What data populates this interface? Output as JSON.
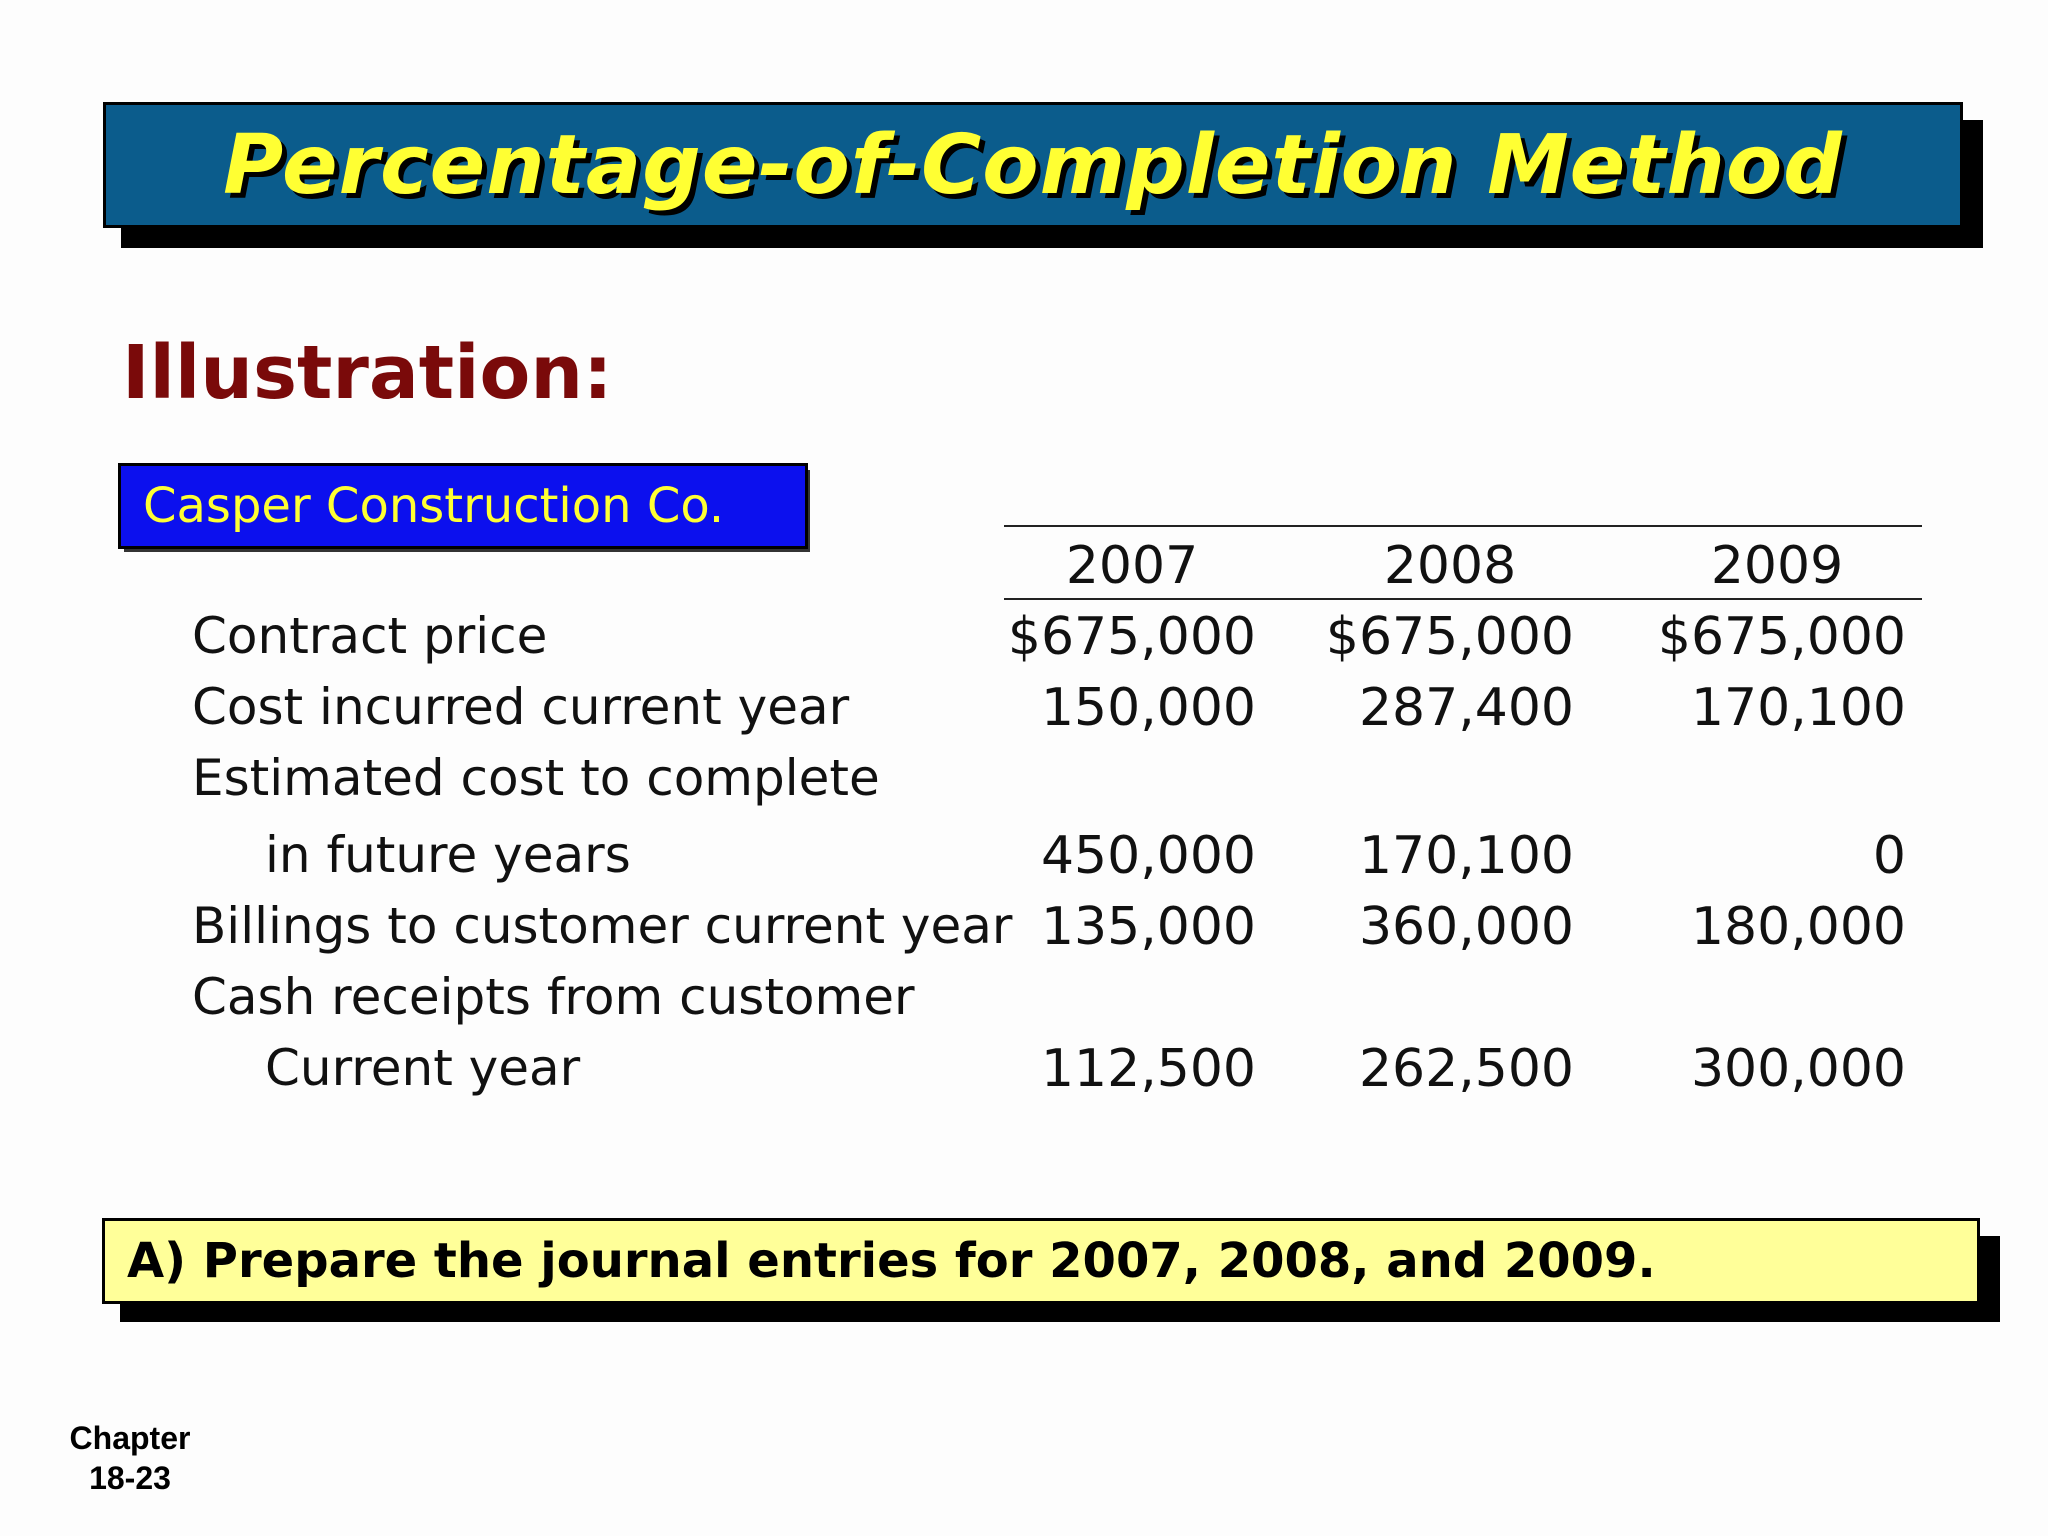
{
  "title": "Percentage-of-Completion Method",
  "heading": "Illustration:",
  "company": "Casper Construction Co.",
  "table": {
    "years": [
      "2007",
      "2008",
      "2009"
    ],
    "rows": [
      {
        "label": "Contract price",
        "values": [
          "$675,000",
          "$675,000",
          "$675,000"
        ]
      },
      {
        "label": "Cost incurred current year",
        "values": [
          "150,000",
          "287,400",
          "170,100"
        ]
      },
      {
        "label": "Estimated cost to complete",
        "values": [
          "",
          "",
          ""
        ]
      },
      {
        "label": "in future years",
        "values": [
          "450,000",
          "170,100",
          "0"
        ]
      },
      {
        "label": "Billings to customer current year",
        "values": [
          "135,000",
          "360,000",
          "180,000"
        ]
      },
      {
        "label": "Cash receipts from customer",
        "values": [
          "",
          "",
          ""
        ]
      },
      {
        "label": "Current year",
        "values": [
          "112,500",
          "262,500",
          "300,000"
        ]
      }
    ]
  },
  "question": "A)  Prepare the journal entries for 2007, 2008, and 2009.",
  "footer": {
    "chapter_label": "Chapter",
    "page": "18-23"
  },
  "colors": {
    "title_bar": "#0b5c8c",
    "title_text": "#ffff33",
    "heading": "#7a0a0a",
    "company_box": "#0c10ee",
    "question_box": "#ffff99"
  }
}
